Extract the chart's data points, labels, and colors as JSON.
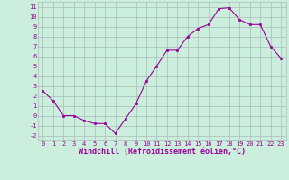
{
  "x": [
    0,
    1,
    2,
    3,
    4,
    5,
    6,
    7,
    8,
    9,
    10,
    11,
    12,
    13,
    14,
    15,
    16,
    17,
    18,
    19,
    20,
    21,
    22,
    23
  ],
  "y": [
    2.5,
    1.5,
    0.0,
    0.0,
    -0.5,
    -0.8,
    -0.8,
    -1.8,
    -0.3,
    1.2,
    3.5,
    5.0,
    6.6,
    6.6,
    8.0,
    8.8,
    9.2,
    10.8,
    10.9,
    9.7,
    9.2,
    9.2,
    7.0,
    5.8
  ],
  "line_color": "#990099",
  "marker": "s",
  "markersize": 1.8,
  "linewidth": 0.8,
  "bg_color": "#cceedd",
  "grid_color": "#aabbbb",
  "xlabel": "Windchill (Refroidissement éolien,°C)",
  "xlim": [
    -0.5,
    23.5
  ],
  "ylim": [
    -2.5,
    11.5
  ],
  "yticks": [
    -2,
    -1,
    0,
    1,
    2,
    3,
    4,
    5,
    6,
    7,
    8,
    9,
    10,
    11
  ],
  "xticks": [
    0,
    1,
    2,
    3,
    4,
    5,
    6,
    7,
    8,
    9,
    10,
    11,
    12,
    13,
    14,
    15,
    16,
    17,
    18,
    19,
    20,
    21,
    22,
    23
  ],
  "tick_color": "#990099",
  "label_color": "#990099",
  "fontsize_xlabel": 6.0,
  "fontsize_ticks": 5.0
}
